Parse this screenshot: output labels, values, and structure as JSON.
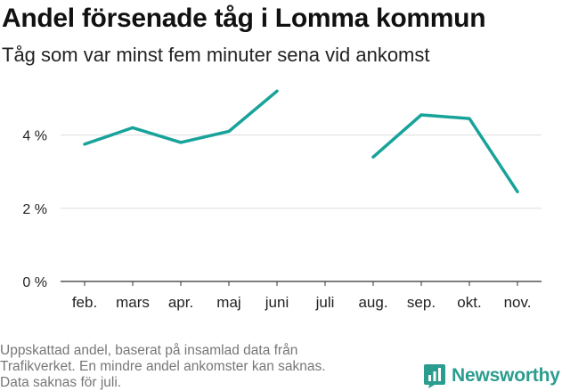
{
  "title": "Andel försenade tåg i Lomma kommun",
  "subtitle": "Tåg som var minst fem minuter sena vid ankomst",
  "footnote": [
    "Uppskattad andel, baserat på insamlad data från",
    "Trafikverket. En mindre andel ankomster kan saknas.",
    "Data saknas för juli."
  ],
  "brand": {
    "name": "Newsworthy",
    "color": "#2a9d8f"
  },
  "chart_data": {
    "type": "line",
    "categories": [
      "feb.",
      "mars",
      "apr.",
      "maj",
      "juni",
      "juli",
      "aug.",
      "sep.",
      "okt.",
      "nov."
    ],
    "series": [
      {
        "values": [
          3.75,
          4.2,
          3.8,
          4.1,
          5.2,
          null,
          3.4,
          4.55,
          4.45,
          2.45
        ],
        "color": "#17a39a"
      }
    ],
    "yticks": [
      {
        "value": 0,
        "label": "0 %"
      },
      {
        "value": 2,
        "label": "2 %"
      },
      {
        "value": 4,
        "label": "4 %"
      }
    ],
    "ylim": [
      0,
      5.5
    ],
    "xlabel": "",
    "ylabel": "",
    "grid": true,
    "legend": "none"
  }
}
